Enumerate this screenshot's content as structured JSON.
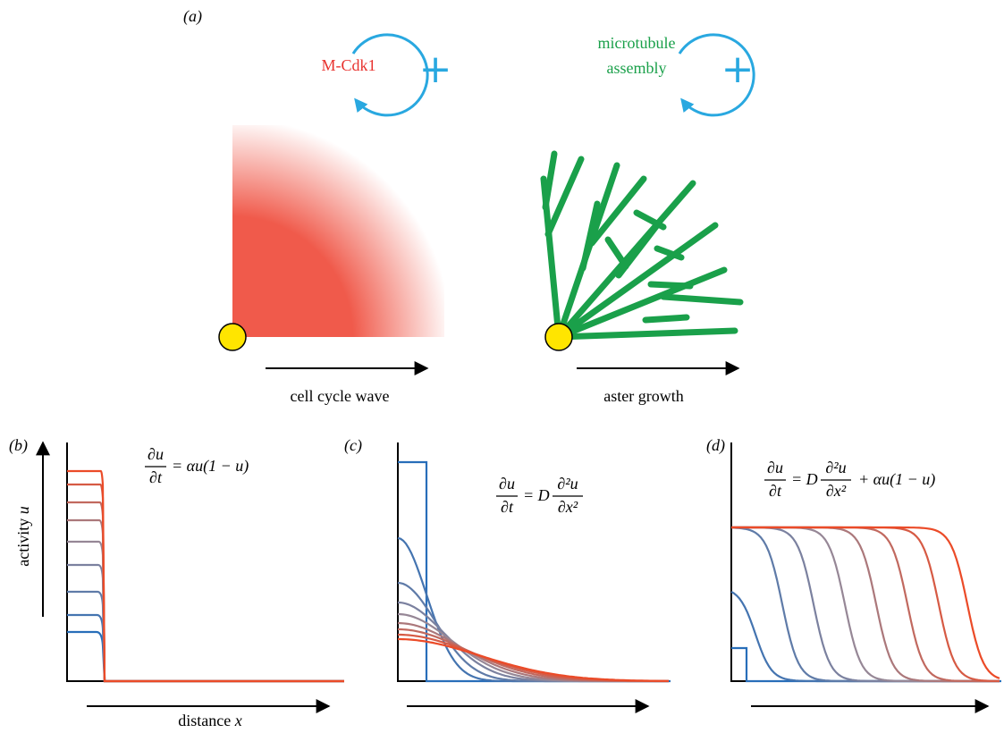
{
  "panel_a": {
    "label": "(a)",
    "loops": [
      {
        "label_lines": [
          "M-Cdk1"
        ],
        "sign": "+"
      },
      {
        "label_lines": [
          "microtubule",
          "assembly"
        ],
        "sign": "+"
      }
    ],
    "arrows": [
      "cell cycle wave",
      "aster growth"
    ]
  },
  "panel_b": {
    "label": "(b)",
    "y_axis": {
      "word": "activity",
      "symbol": "u"
    },
    "x_axis": {
      "word": "distance",
      "symbol": "x"
    },
    "equation": {
      "num": "∂u",
      "den": "∂t",
      "rhs": "= αu(1 − u)"
    }
  },
  "panel_c": {
    "label": "(c)",
    "equation": {
      "num": "∂u",
      "den": "∂t",
      "mid": "= D",
      "num2": "∂²u",
      "den2": "∂x²"
    }
  },
  "panel_d": {
    "label": "(d)",
    "equation": {
      "num": "∂u",
      "den": "∂t",
      "mid": "= D",
      "num2": "∂²u",
      "den2": "∂x²",
      "rhs": "+ αu(1 − u)"
    }
  }
}
